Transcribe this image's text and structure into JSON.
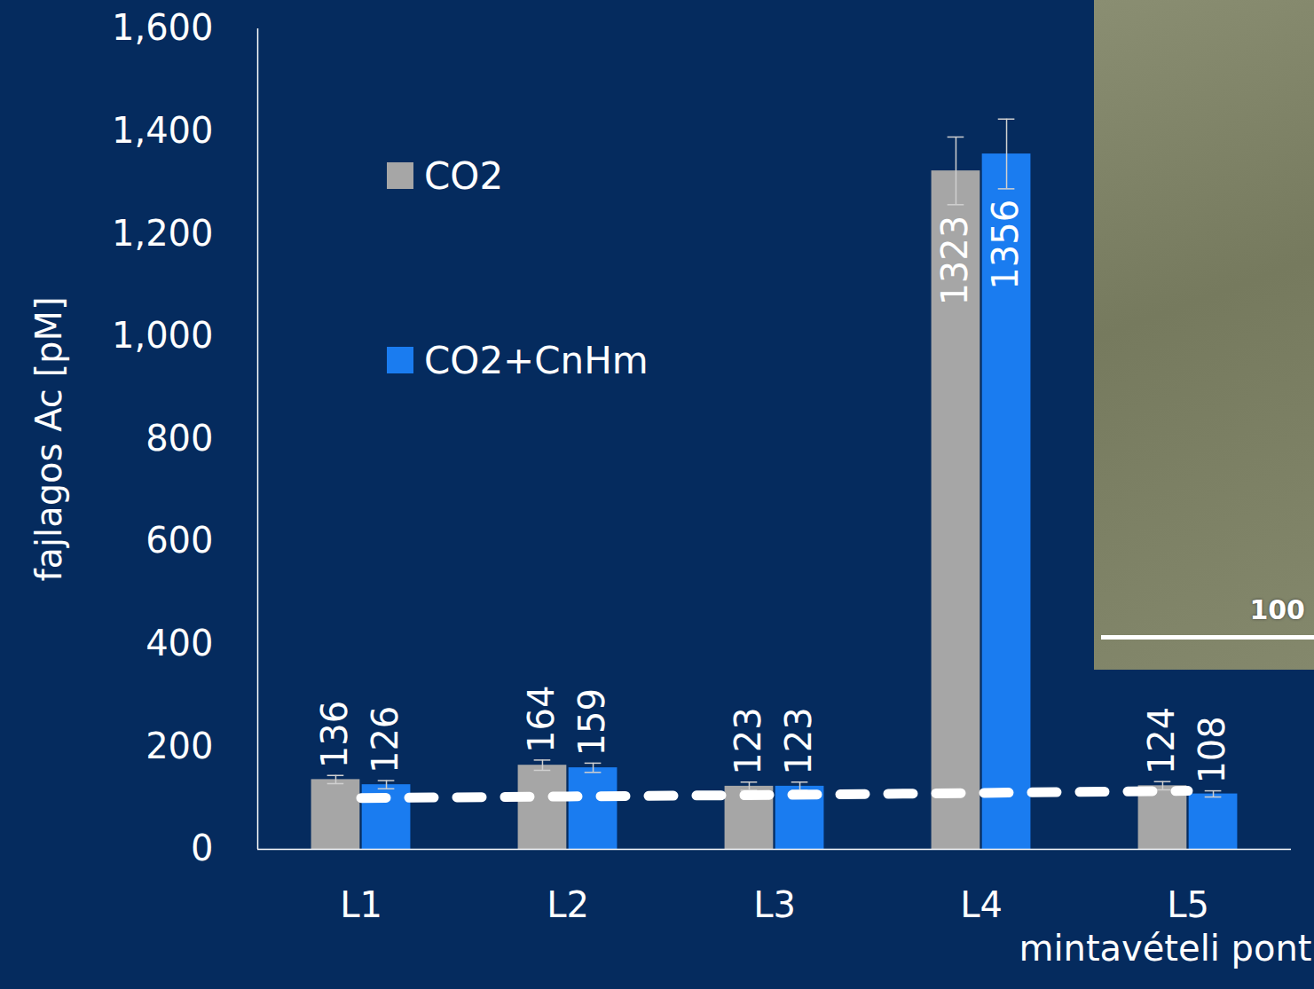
{
  "chart_data": {
    "type": "bar",
    "y_label": "fajlagos Ac [pM]",
    "x_label": "mintavételi pont",
    "categories": [
      "L1",
      "L2",
      "L3",
      "L4",
      "L5"
    ],
    "series": [
      {
        "name": "CO2",
        "color": "#a6a6a6",
        "values": [
          136,
          164,
          123,
          1323,
          124
        ],
        "errors": [
          8,
          10,
          8,
          66,
          8
        ]
      },
      {
        "name": "CO2+CnHm",
        "color": "#1a7cf0",
        "values": [
          126,
          159,
          123,
          1356,
          108
        ],
        "errors": [
          8,
          9,
          8,
          68,
          6
        ]
      }
    ],
    "reference_line": {
      "values": [
        100,
        103,
        106,
        110,
        114
      ],
      "color": "#ffffff",
      "line_style": "dashed"
    },
    "ylim": [
      0,
      1600
    ],
    "yticks": [
      0,
      200,
      400,
      600,
      800,
      1000,
      1200,
      1400,
      1600
    ],
    "grid": false,
    "legend": "top-left",
    "data_labels": true,
    "annotations": [
      {
        "text": "100"
      }
    ]
  }
}
